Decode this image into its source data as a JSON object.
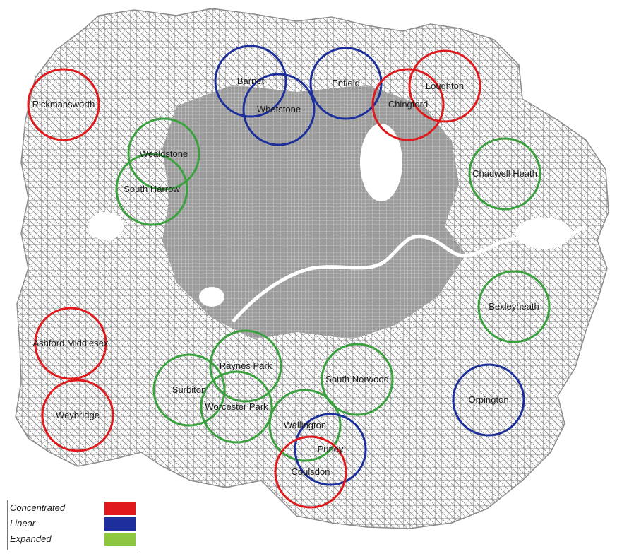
{
  "colors": {
    "concentrated": "#e0191c",
    "linear": "#1d2f9b",
    "expanded_circle": "#3aa13e",
    "expanded_legend": "#8dc63f",
    "roads": "#8c8c8c",
    "boundary": "#8c8c8c"
  },
  "towns": [
    {
      "name": "Rickmansworth",
      "type": "concentrated"
    },
    {
      "name": "Barnet",
      "type": "linear"
    },
    {
      "name": "Whetstone",
      "type": "linear"
    },
    {
      "name": "Enfield",
      "type": "linear"
    },
    {
      "name": "Chingford",
      "type": "concentrated"
    },
    {
      "name": "Loughton",
      "type": "concentrated"
    },
    {
      "name": "Wealdstone",
      "type": "expanded"
    },
    {
      "name": "South Harrow",
      "type": "expanded"
    },
    {
      "name": "Chadwell Heath",
      "type": "expanded"
    },
    {
      "name": "Bexleyheath",
      "type": "expanded"
    },
    {
      "name": "Ashford Middlesex",
      "type": "concentrated"
    },
    {
      "name": "Weybridge",
      "type": "concentrated"
    },
    {
      "name": "Surbiton",
      "type": "expanded"
    },
    {
      "name": "Raynes Park",
      "type": "expanded"
    },
    {
      "name": "Worcester Park",
      "type": "expanded"
    },
    {
      "name": "South Norwood",
      "type": "expanded"
    },
    {
      "name": "Orpington",
      "type": "linear"
    },
    {
      "name": "Wallington",
      "type": "expanded"
    },
    {
      "name": "Purley",
      "type": "linear"
    },
    {
      "name": "Coulsdon",
      "type": "concentrated"
    }
  ],
  "legend": [
    {
      "label": "Concentrated",
      "color": "#e0191c"
    },
    {
      "label": "Linear",
      "color": "#1d2f9b"
    },
    {
      "label": "Expanded",
      "color": "#8dc63f"
    }
  ]
}
